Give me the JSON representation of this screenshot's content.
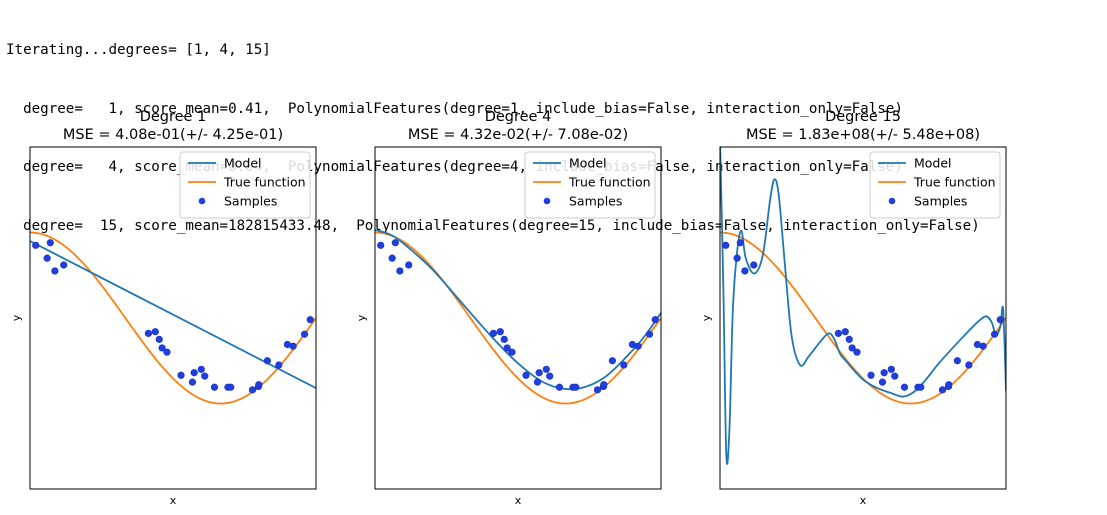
{
  "console": {
    "lines": [
      "Iterating...degrees= [1, 4, 15]",
      "  degree=   1, score_mean=0.41,  PolynomialFeatures(degree=1, include_bias=False, interaction_only=False)",
      "  degree=   4, score_mean=0.04,  PolynomialFeatures(degree=4, include_bias=False, interaction_only=False)",
      "  degree=  15, score_mean=182815433.48,  PolynomialFeatures(degree=15, include_bias=False, interaction_only=False)"
    ]
  },
  "colors": {
    "model": "#1f77b4",
    "true_function": "#ff7f0e",
    "samples": "#1f3fe0",
    "axis": "#000000"
  },
  "chart_data": [
    {
      "type": "line",
      "title": "Degree 1",
      "subtitle": "MSE = 4.08e-01(+/- 4.25e-01)",
      "xlabel": "x",
      "ylabel": "y",
      "xlim": [
        0,
        1
      ],
      "ylim": [
        -2,
        2
      ],
      "xticks": [],
      "yticks": [],
      "grid": false,
      "legend": {
        "placement": "top-right",
        "entries": [
          "Model",
          "True function",
          "Samples"
        ]
      },
      "true_function": {
        "expr": "cos(1.5*pi*x)"
      },
      "series": [
        {
          "name": "Model",
          "x": [
            0,
            1
          ],
          "y": [
            0.9,
            -0.82
          ]
        }
      ]
    },
    {
      "type": "line",
      "title": "Degree 4",
      "subtitle": "MSE = 4.32e-02(+/- 7.08e-02)",
      "xlabel": "x",
      "ylabel": "y",
      "xlim": [
        0,
        1
      ],
      "ylim": [
        -2,
        2
      ],
      "xticks": [],
      "yticks": [],
      "grid": false,
      "legend": {
        "placement": "top-right",
        "entries": [
          "Model",
          "True function",
          "Samples"
        ]
      },
      "true_function": {
        "expr": "cos(1.5*pi*x)"
      },
      "series": [
        {
          "name": "Model",
          "x": [
            0,
            0.05,
            0.1,
            0.2,
            0.3,
            0.4,
            0.5,
            0.6,
            0.7,
            0.8,
            0.9,
            0.95,
            1.0
          ],
          "y": [
            1.03,
            0.98,
            0.87,
            0.57,
            0.19,
            -0.19,
            -0.53,
            -0.77,
            -0.83,
            -0.7,
            -0.38,
            -0.18,
            0.06
          ]
        }
      ]
    },
    {
      "type": "line",
      "title": "Degree 15",
      "subtitle": "MSE = 1.83e+08(+/- 5.48e+08)",
      "xlabel": "x",
      "ylabel": "y",
      "xlim": [
        0,
        1
      ],
      "ylim": [
        -2,
        2
      ],
      "xticks": [],
      "yticks": [],
      "grid": false,
      "legend": {
        "placement": "top-right",
        "entries": [
          "Model",
          "True function",
          "Samples"
        ]
      },
      "true_function": {
        "expr": "cos(1.5*pi*x)"
      },
      "series": [
        {
          "name": "Model",
          "x": [
            0,
            0.012,
            0.022,
            0.033,
            0.045,
            0.06,
            0.075,
            0.09,
            0.12,
            0.15,
            0.175,
            0.19,
            0.205,
            0.225,
            0.25,
            0.28,
            0.31,
            0.35,
            0.38,
            0.4,
            0.42,
            0.44,
            0.46,
            0.5,
            0.55,
            0.6,
            0.64,
            0.68,
            0.72,
            0.76,
            0.8,
            0.85,
            0.9,
            0.93,
            0.95,
            0.965,
            0.98,
            0.99,
            1.0
          ],
          "y": [
            2.1,
            0.3,
            -1.6,
            -1.3,
            0.1,
            0.78,
            1.02,
            0.7,
            0.52,
            0.74,
            1.38,
            1.62,
            1.45,
            0.7,
            -0.2,
            -0.55,
            -0.45,
            -0.28,
            -0.18,
            -0.25,
            -0.42,
            -0.5,
            -0.58,
            -0.72,
            -0.82,
            -0.88,
            -0.92,
            -0.86,
            -0.72,
            -0.55,
            -0.4,
            -0.22,
            -0.05,
            0.02,
            -0.05,
            -0.2,
            -0.1,
            0.1,
            -0.85
          ]
        }
      ]
    }
  ],
  "samples": {
    "x": [
      0.02,
      0.06,
      0.071,
      0.087,
      0.118,
      0.414,
      0.438,
      0.452,
      0.462,
      0.479,
      0.528,
      0.568,
      0.574,
      0.599,
      0.611,
      0.645,
      0.692,
      0.702,
      0.778,
      0.799,
      0.8,
      0.83,
      0.87,
      0.9,
      0.92,
      0.96,
      0.98
    ],
    "y": [
      0.85,
      0.7,
      0.88,
      0.55,
      0.62,
      -0.18,
      -0.16,
      -0.25,
      -0.35,
      -0.4,
      -0.67,
      -0.75,
      -0.64,
      -0.6,
      -0.68,
      -0.81,
      -0.81,
      -0.81,
      -0.84,
      -0.8,
      -0.78,
      -0.5,
      -0.55,
      -0.31,
      -0.33,
      -0.19,
      -0.02
    ]
  }
}
